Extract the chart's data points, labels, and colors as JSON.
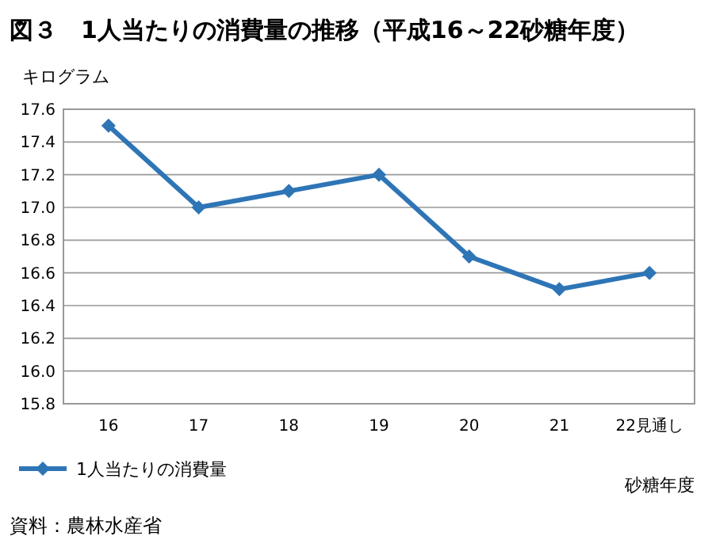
{
  "chart_data": {
    "type": "line",
    "title": "図３　1人当たりの消費量の推移（平成16～22砂糖年度）",
    "ylabel": "キログラム",
    "xlabel": "砂糖年度",
    "categories": [
      "16",
      "17",
      "18",
      "19",
      "20",
      "21",
      "22見通し"
    ],
    "series": [
      {
        "name": "1人当たりの消費量",
        "color": "#2e75b6",
        "values": [
          17.5,
          17.0,
          17.1,
          17.2,
          16.7,
          16.5,
          16.6
        ]
      }
    ],
    "ylim": [
      15.8,
      17.6
    ],
    "yticks": [
      {
        "value": 15.8,
        "label": "15.8"
      },
      {
        "value": 16,
        "label": "16.0"
      },
      {
        "value": 16.2,
        "label": "16.2"
      },
      {
        "value": 16.4,
        "label": "16.4"
      },
      {
        "value": 16.6,
        "label": "16.6"
      },
      {
        "value": 16.8,
        "label": "16.8"
      },
      {
        "value": 17,
        "label": "17.0"
      },
      {
        "value": 17.2,
        "label": "17.2"
      },
      {
        "value": 17.4,
        "label": "17.4"
      },
      {
        "value": 17.6,
        "label": "17.6"
      }
    ],
    "grid": "y",
    "legend": "bottom left",
    "marker": "diamond",
    "line_style": "solid",
    "annotations": [
      "資料：農林水産省"
    ]
  }
}
